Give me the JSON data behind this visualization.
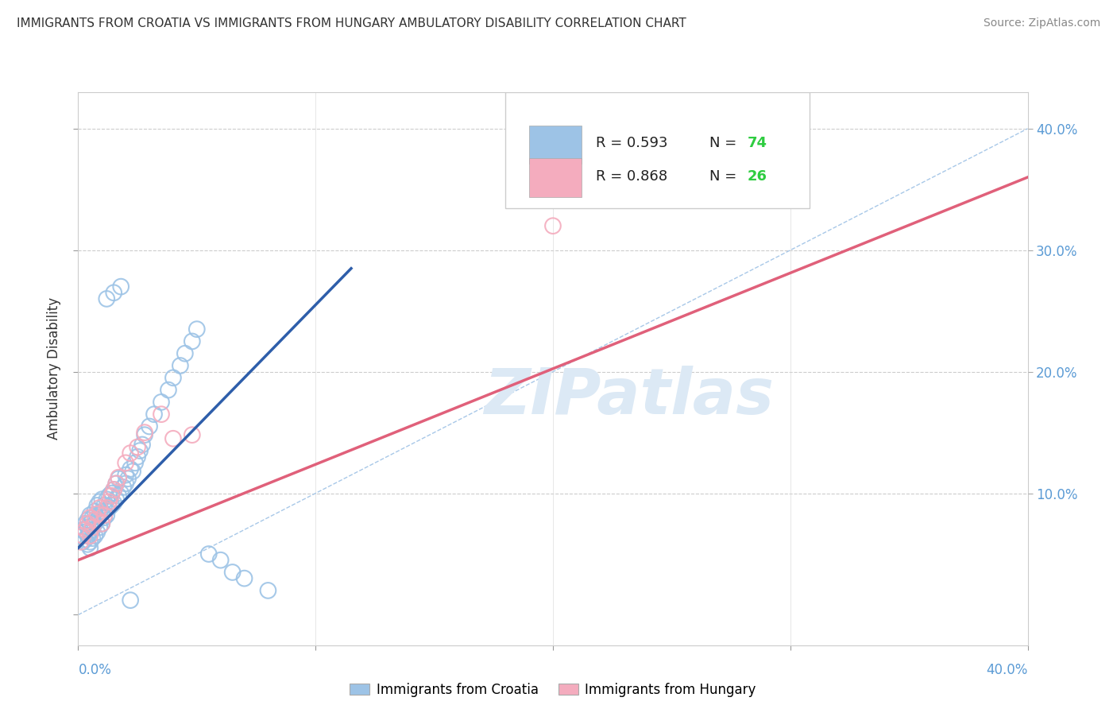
{
  "title": "IMMIGRANTS FROM CROATIA VS IMMIGRANTS FROM HUNGARY AMBULATORY DISABILITY CORRELATION CHART",
  "source": "Source: ZipAtlas.com",
  "ylabel": "Ambulatory Disability",
  "xlim": [
    0.0,
    0.4
  ],
  "ylim": [
    -0.025,
    0.43
  ],
  "legend_croatia_R": "R = 0.593",
  "legend_croatia_N": "N = 74",
  "legend_hungary_R": "R = 0.868",
  "legend_hungary_N": "N = 26",
  "croatia_color": "#9DC3E6",
  "hungary_color": "#F4ACBE",
  "croatia_line_color": "#2E5EAA",
  "hungary_line_color": "#E0607A",
  "diagonal_color": "#A8C8E8",
  "watermark": "ZIPatlas",
  "croatia_line_x": [
    0.0,
    0.115
  ],
  "croatia_line_y": [
    0.055,
    0.285
  ],
  "hungary_line_x": [
    0.0,
    0.4
  ],
  "hungary_line_y": [
    0.045,
    0.36
  ],
  "croatia_scatter_x": [
    0.001,
    0.002,
    0.002,
    0.003,
    0.003,
    0.003,
    0.004,
    0.004,
    0.004,
    0.004,
    0.005,
    0.005,
    0.005,
    0.005,
    0.005,
    0.006,
    0.006,
    0.006,
    0.007,
    0.007,
    0.007,
    0.008,
    0.008,
    0.008,
    0.009,
    0.009,
    0.009,
    0.01,
    0.01,
    0.01,
    0.011,
    0.011,
    0.012,
    0.012,
    0.013,
    0.013,
    0.014,
    0.014,
    0.015,
    0.015,
    0.016,
    0.016,
    0.017,
    0.017,
    0.018,
    0.019,
    0.02,
    0.02,
    0.021,
    0.022,
    0.023,
    0.024,
    0.025,
    0.026,
    0.027,
    0.028,
    0.03,
    0.032,
    0.035,
    0.038,
    0.04,
    0.043,
    0.045,
    0.048,
    0.05,
    0.055,
    0.06,
    0.065,
    0.07,
    0.08,
    0.012,
    0.015,
    0.018,
    0.022
  ],
  "croatia_scatter_y": [
    0.065,
    0.06,
    0.07,
    0.062,
    0.068,
    0.075,
    0.058,
    0.065,
    0.072,
    0.078,
    0.06,
    0.068,
    0.075,
    0.082,
    0.055,
    0.063,
    0.07,
    0.08,
    0.065,
    0.075,
    0.085,
    0.068,
    0.078,
    0.09,
    0.072,
    0.082,
    0.093,
    0.075,
    0.085,
    0.095,
    0.08,
    0.09,
    0.082,
    0.095,
    0.088,
    0.098,
    0.09,
    0.1,
    0.092,
    0.103,
    0.095,
    0.108,
    0.098,
    0.112,
    0.1,
    0.105,
    0.108,
    0.115,
    0.112,
    0.12,
    0.118,
    0.125,
    0.13,
    0.135,
    0.14,
    0.148,
    0.155,
    0.165,
    0.175,
    0.185,
    0.195,
    0.205,
    0.215,
    0.225,
    0.235,
    0.05,
    0.045,
    0.035,
    0.03,
    0.02,
    0.26,
    0.265,
    0.27,
    0.012
  ],
  "hungary_scatter_x": [
    0.001,
    0.002,
    0.003,
    0.004,
    0.005,
    0.005,
    0.006,
    0.007,
    0.008,
    0.009,
    0.01,
    0.011,
    0.012,
    0.013,
    0.014,
    0.015,
    0.016,
    0.017,
    0.02,
    0.022,
    0.025,
    0.028,
    0.035,
    0.04,
    0.048,
    0.2
  ],
  "hungary_scatter_y": [
    0.06,
    0.065,
    0.07,
    0.075,
    0.065,
    0.08,
    0.072,
    0.078,
    0.083,
    0.088,
    0.075,
    0.082,
    0.088,
    0.093,
    0.098,
    0.103,
    0.108,
    0.113,
    0.125,
    0.133,
    0.138,
    0.15,
    0.165,
    0.145,
    0.148,
    0.32
  ]
}
